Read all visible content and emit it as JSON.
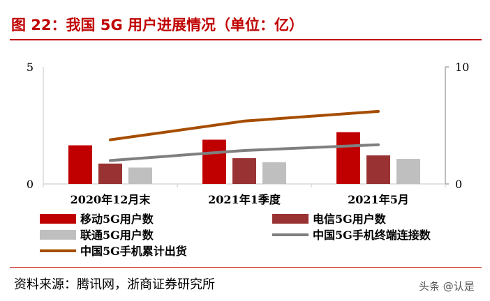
{
  "title": "图 22：我国 5G 用户进展情况（单位：亿）",
  "source": "资料来源：腾讯网，浙商证券研究所",
  "watermark": "头条 @认是",
  "chart_data": {
    "type": "bar",
    "categories": [
      "2020年12月末",
      "2021年1季度",
      "2021年5月"
    ],
    "left_axis": {
      "range": [
        0,
        5
      ],
      "ticks": [
        "0",
        "5"
      ]
    },
    "right_axis": {
      "range": [
        0,
        10
      ],
      "ticks": [
        "0",
        "10"
      ]
    },
    "grid": false,
    "legend_placement": "bottom",
    "series": [
      {
        "name": "移动5G用户数",
        "kind": "bar",
        "axis": "left",
        "color": "#c00000",
        "values": [
          1.65,
          1.89,
          2.21
        ]
      },
      {
        "name": "电信5G用户数",
        "kind": "bar",
        "axis": "left",
        "color": "#993333",
        "values": [
          0.87,
          1.1,
          1.22
        ]
      },
      {
        "name": "联通5G用户数",
        "kind": "bar",
        "axis": "left",
        "color": "#bfbfbf",
        "values": [
          0.7,
          0.93,
          1.07
        ]
      },
      {
        "name": "中国5G手机终端连接数",
        "kind": "line",
        "axis": "right",
        "color": "#7f7f7f",
        "values": [
          2.0,
          2.86,
          3.35
        ]
      },
      {
        "name": "中国5G手机累计出货",
        "kind": "line",
        "axis": "right",
        "color": "#a64d00",
        "values": [
          3.77,
          5.37,
          6.2
        ]
      }
    ]
  }
}
